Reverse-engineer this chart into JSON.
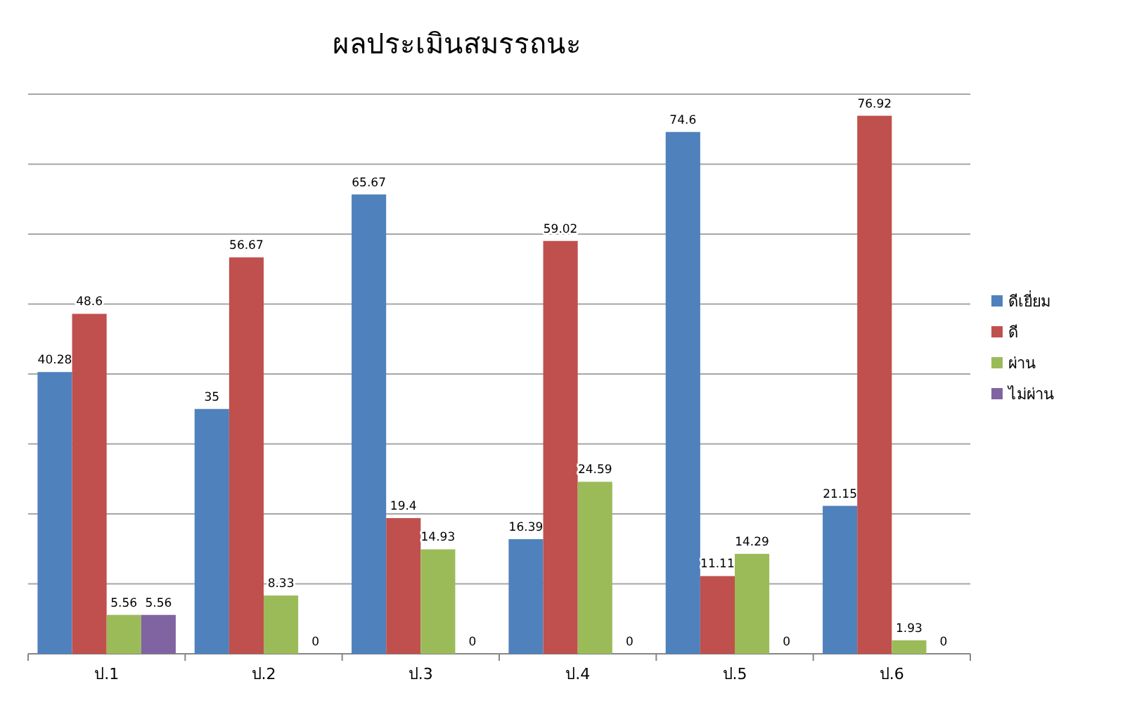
{
  "chart_data": {
    "type": "bar",
    "title": "ผลประเมินสมรรถนะ",
    "categories": [
      "ป.1",
      "ป.2",
      "ป.3",
      "ป.4",
      "ป.5",
      "ป.6"
    ],
    "series": [
      {
        "name": "ดีเยี่ยม",
        "color": "#4f81bd",
        "values": [
          40.28,
          35,
          65.67,
          16.39,
          74.6,
          21.15
        ]
      },
      {
        "name": "ดี",
        "color": "#c0504d",
        "values": [
          48.6,
          56.67,
          19.4,
          59.02,
          11.11,
          76.92
        ]
      },
      {
        "name": "ผ่าน",
        "color": "#9bbb59",
        "values": [
          5.56,
          8.33,
          14.93,
          24.59,
          14.29,
          1.93
        ]
      },
      {
        "name": "ไม่ผ่าน",
        "color": "#8064a2",
        "values": [
          5.56,
          0,
          0,
          0,
          0,
          0
        ]
      }
    ],
    "ylim": [
      0,
      80
    ],
    "yticks": [
      {
        "value": 0,
        "label": null
      },
      {
        "value": 10,
        "label": null
      },
      {
        "value": 20,
        "label": null
      },
      {
        "value": 30,
        "label": null
      },
      {
        "value": 40,
        "label": null
      },
      {
        "value": 50,
        "label": null
      },
      {
        "value": 60,
        "label": null
      },
      {
        "value": 70,
        "label": null
      },
      {
        "value": 80,
        "label": null
      }
    ],
    "tick_labels": "x",
    "grid": "y",
    "legend": "right",
    "data_labels": true
  }
}
